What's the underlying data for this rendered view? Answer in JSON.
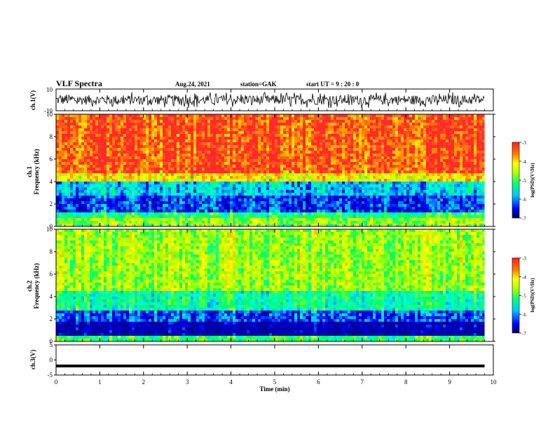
{
  "header": {
    "title": "VLF Spectra",
    "date": "Aug.24, 2021",
    "station": "station=GAK",
    "start_ut": "start UT =  9 : 20 : 0"
  },
  "chart_data": [
    {
      "type": "line",
      "panel": "ch1-waveform",
      "ylabel": "ch.1(V)",
      "ylim": [
        -10,
        10
      ],
      "y_ticks": [
        "10",
        "-10"
      ],
      "x_range_min": [
        0,
        9.8
      ],
      "description_of_values": "noisy broadband waveform, amplitude mostly within ±6 V"
    },
    {
      "type": "heatmap",
      "panel": "ch1-spectrogram",
      "ylabel": "ch.1 Frequency (kHz)",
      "ylim": [
        0,
        10
      ],
      "y_ticks": [
        "0",
        "2",
        "4",
        "6",
        "8",
        "10"
      ],
      "x_range_min": [
        0,
        9.8
      ],
      "colorbar": {
        "label": "log(PSD)(V²/Hz)",
        "min": -7,
        "max": -3,
        "ticks": [
          "-3",
          "-4",
          "-5",
          "-6",
          "-7"
        ]
      },
      "bands_kHz_logPSD": [
        {
          "from": 0.0,
          "to": 0.8,
          "level": -4.6
        },
        {
          "from": 0.8,
          "to": 1.4,
          "level": -5.2
        },
        {
          "from": 1.4,
          "to": 3.0,
          "level": -6.4
        },
        {
          "from": 3.0,
          "to": 4.1,
          "level": -5.8
        },
        {
          "from": 4.1,
          "to": 5.0,
          "level": -4.0
        },
        {
          "from": 5.0,
          "to": 10.0,
          "level": -3.2
        }
      ]
    },
    {
      "type": "heatmap",
      "panel": "ch2-spectrogram",
      "ylabel": "ch.2 Frequency (kHz)",
      "ylim": [
        0,
        10
      ],
      "y_ticks": [
        "0",
        "2",
        "4",
        "6",
        "8",
        "10"
      ],
      "x_range_min": [
        0,
        9.8
      ],
      "colorbar": {
        "label": "log(PSD)(V²/Hz)",
        "min": -7,
        "max": -3,
        "ticks": [
          "-3",
          "-4",
          "-5",
          "-6",
          "-7"
        ]
      },
      "bands_kHz_logPSD": [
        {
          "from": 0.0,
          "to": 0.6,
          "level": -5.0
        },
        {
          "from": 0.6,
          "to": 1.8,
          "level": -7.0
        },
        {
          "from": 1.8,
          "to": 3.0,
          "level": -6.3
        },
        {
          "from": 3.0,
          "to": 4.6,
          "level": -5.3
        },
        {
          "from": 4.6,
          "to": 10.0,
          "level": -4.5
        }
      ]
    },
    {
      "type": "line",
      "panel": "ch3-waveform",
      "ylabel": "ch.3(V)",
      "ylim": [
        -5,
        5
      ],
      "y_ticks": [
        "5",
        "0",
        "-5"
      ],
      "x_range_min": [
        0,
        9.8
      ],
      "constant_value": -2.0
    }
  ],
  "x_axis": {
    "label": "Time  (min)",
    "ticks": [
      "0",
      "1",
      "2",
      "3",
      "4",
      "5",
      "6",
      "7",
      "8",
      "9",
      "10"
    ],
    "range": [
      0,
      10
    ]
  },
  "colors": {
    "colormap": [
      "#0000a0",
      "#0000ff",
      "#00b4ff",
      "#00ffd2",
      "#00ff5a",
      "#b4ff00",
      "#ffff00",
      "#ff9600",
      "#ff2a2a"
    ]
  }
}
